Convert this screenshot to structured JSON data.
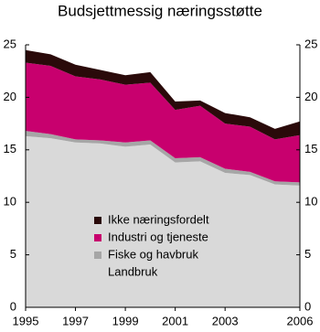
{
  "chart_data": {
    "type": "stacked_area",
    "title": "Budsjettmessig næringsstøtte",
    "x": [
      1995,
      1996,
      1997,
      1998,
      1999,
      2000,
      2001,
      2002,
      2003,
      2004,
      2005,
      2006
    ],
    "xlim": [
      1995,
      2006
    ],
    "xticks": [
      1995,
      1997,
      1999,
      2001,
      2003,
      2006
    ],
    "ylim": [
      0,
      25
    ],
    "yticks": [
      0,
      5,
      10,
      15,
      20,
      25
    ],
    "y2lim": [
      0,
      25
    ],
    "y2ticks": [
      0,
      5,
      10,
      15,
      20,
      25
    ],
    "series": [
      {
        "name": "Landbruk",
        "color": "#d9d9d9",
        "values": [
          16.3,
          16.1,
          15.7,
          15.6,
          15.3,
          15.5,
          13.8,
          13.9,
          12.8,
          12.6,
          11.7,
          11.6
        ]
      },
      {
        "name": "Fiske og havbruk",
        "color": "#a6a6a6",
        "values": [
          0.5,
          0.4,
          0.3,
          0.3,
          0.4,
          0.4,
          0.4,
          0.4,
          0.4,
          0.3,
          0.3,
          0.3
        ]
      },
      {
        "name": "Industri og tjeneste",
        "color": "#c8006e",
        "values": [
          6.5,
          6.5,
          6.0,
          5.8,
          5.5,
          5.5,
          4.6,
          4.9,
          4.3,
          4.3,
          4.0,
          4.5
        ]
      },
      {
        "name": "Ikke næringsfordelt",
        "color": "#2a0a0a",
        "values": [
          1.2,
          1.1,
          1.1,
          0.9,
          0.9,
          1.0,
          0.8,
          0.5,
          1.0,
          0.9,
          1.0,
          1.3
        ]
      }
    ]
  }
}
